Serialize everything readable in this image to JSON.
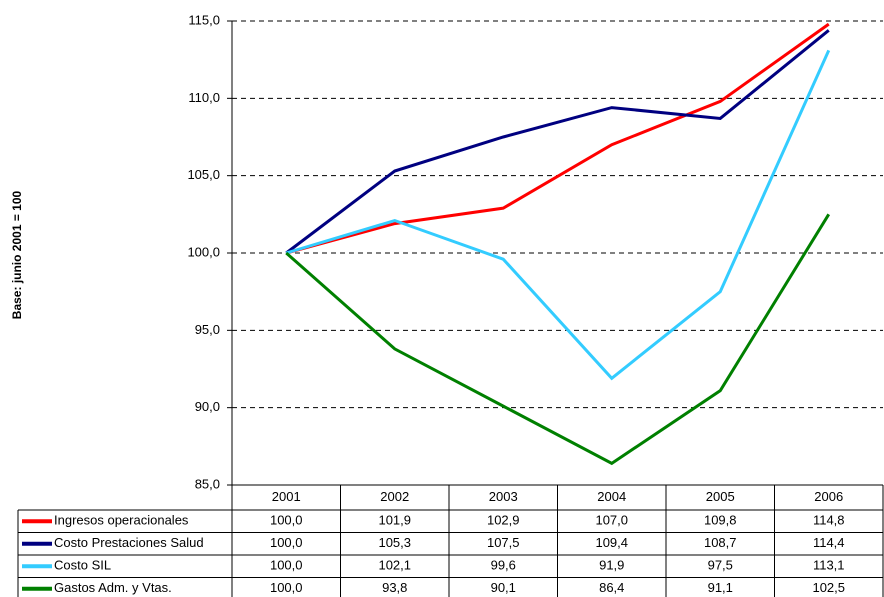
{
  "chart_data": {
    "type": "line",
    "y_label": "Base: junio 2001 = 100",
    "categories": [
      "2001",
      "2002",
      "2003",
      "2004",
      "2005",
      "2006"
    ],
    "series": [
      {
        "name": "Ingresos operacionales",
        "color": "#ff0000",
        "values": [
          100.0,
          101.9,
          102.9,
          107.0,
          109.8,
          114.8
        ],
        "value_labels": [
          "100,0",
          "101,9",
          "102,9",
          "107,0",
          "109,8",
          "114,8"
        ]
      },
      {
        "name": "Costo Prestaciones Salud",
        "color": "#000080",
        "values": [
          100.0,
          105.3,
          107.5,
          109.4,
          108.7,
          114.4
        ],
        "value_labels": [
          "100,0",
          "105,3",
          "107,5",
          "109,4",
          "108,7",
          "114,4"
        ]
      },
      {
        "name": "Costo SIL",
        "color": "#33ccff",
        "values": [
          100.0,
          102.1,
          99.6,
          91.9,
          97.5,
          113.1
        ],
        "value_labels": [
          "100,0",
          "102,1",
          "99,6",
          "91,9",
          "97,5",
          "113,1"
        ]
      },
      {
        "name": "Gastos Adm. y Vtas.",
        "color": "#008000",
        "values": [
          100.0,
          93.8,
          90.1,
          86.4,
          91.1,
          102.5
        ],
        "value_labels": [
          "100,0",
          "93,8",
          "90,1",
          "86,4",
          "91,1",
          "102,5"
        ]
      }
    ],
    "ylim": [
      85,
      115
    ],
    "yticks": [
      {
        "value": 85,
        "label": "85,0"
      },
      {
        "value": 90,
        "label": "90,0"
      },
      {
        "value": 95,
        "label": "95,0"
      },
      {
        "value": 100,
        "label": "100,0"
      },
      {
        "value": 105,
        "label": "105,0"
      },
      {
        "value": 110,
        "label": "110,0"
      },
      {
        "value": 115,
        "label": "115,0"
      }
    ],
    "grid": true
  }
}
